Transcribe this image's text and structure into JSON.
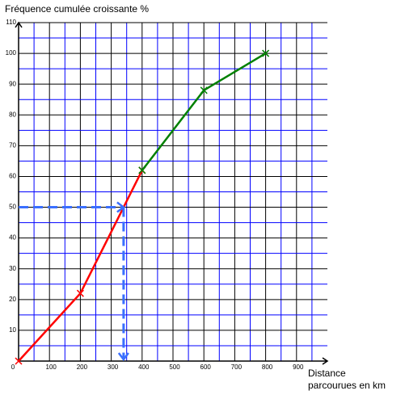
{
  "chart_data": {
    "type": "line",
    "title": "Fréquence cumulée croissante %",
    "xlabel": [
      "Distance",
      "parcourues en km"
    ],
    "series": [
      {
        "color": "#ff0000",
        "x": [
          0,
          200,
          400
        ],
        "values": [
          0,
          22,
          62
        ]
      },
      {
        "color": "#008000",
        "x": [
          400,
          600,
          800
        ],
        "values": [
          62,
          88,
          100
        ]
      }
    ],
    "reading": {
      "x": 340,
      "y": 50,
      "color": "#3a6fff"
    },
    "xlim": [
      0,
      1000
    ],
    "ylim": [
      0,
      110
    ],
    "xticks": [
      0,
      100,
      200,
      300,
      400,
      500,
      600,
      700,
      800,
      900
    ],
    "yticks": [
      10,
      20,
      30,
      40,
      50,
      60,
      70,
      80,
      90,
      100,
      110
    ],
    "grid": true
  }
}
